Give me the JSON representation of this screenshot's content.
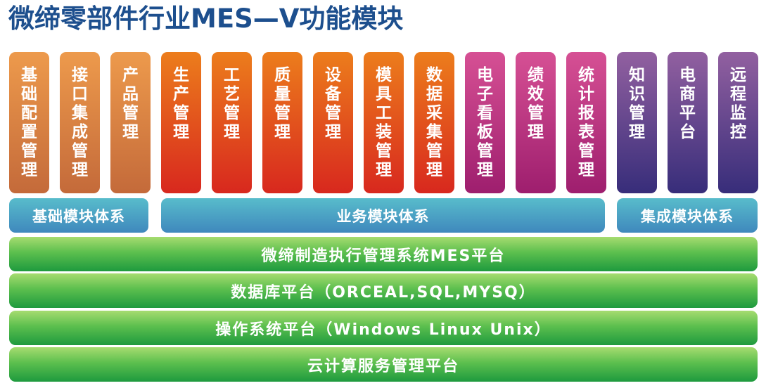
{
  "title": "微缔零部件行业MES—V功能模块",
  "colors": {
    "title": "#1d4f8e",
    "base": "#e08848",
    "business": "#e24e1e",
    "business_pink": "#c03c84",
    "integration": "#5e4490",
    "category": "#4ca2c4",
    "platform": "#4cb84a"
  },
  "modules": [
    {
      "label": "基础配置管理",
      "group": "base"
    },
    {
      "label": "接口集成管理",
      "group": "base"
    },
    {
      "label": "产品管理",
      "group": "base"
    },
    {
      "label": "生产管理",
      "group": "biz"
    },
    {
      "label": "工艺管理",
      "group": "biz"
    },
    {
      "label": "质量管理",
      "group": "biz"
    },
    {
      "label": "设备管理",
      "group": "biz"
    },
    {
      "label": "模具工装管理",
      "group": "biz"
    },
    {
      "label": "数据采集管理",
      "group": "biz"
    },
    {
      "label": "电子看板管理",
      "group": "pink"
    },
    {
      "label": "绩效管理",
      "group": "pink"
    },
    {
      "label": "统计报表管理",
      "group": "pink"
    },
    {
      "label": "知识管理",
      "group": "purple"
    },
    {
      "label": "电商平台",
      "group": "purple"
    },
    {
      "label": "远程监控",
      "group": "purple"
    }
  ],
  "categories": {
    "base": "基础模块体系",
    "business": "业务模块体系",
    "integration": "集成模块体系"
  },
  "platforms": [
    "微缔制造执行管理系统MES平台",
    "数据库平台（ORCEAL,SQL,MYSQ）",
    "操作系统平台（Windows Linux Unix）",
    "云计算服务管理平台"
  ]
}
